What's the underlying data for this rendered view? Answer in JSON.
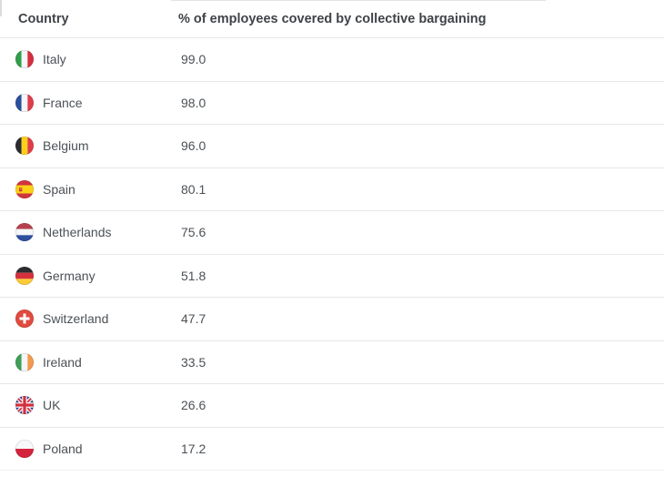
{
  "chart_data": {
    "type": "table",
    "columns": [
      "Country",
      "% of employees covered by collective bargaining"
    ],
    "rows": [
      {
        "country": "Italy",
        "value": "99.0",
        "flag_icon": "italy-flag-icon"
      },
      {
        "country": "France",
        "value": "98.0",
        "flag_icon": "france-flag-icon"
      },
      {
        "country": "Belgium",
        "value": "96.0",
        "flag_icon": "belgium-flag-icon"
      },
      {
        "country": "Spain",
        "value": "80.1",
        "flag_icon": "spain-flag-icon"
      },
      {
        "country": "Netherlands",
        "value": "75.6",
        "flag_icon": "netherlands-flag-icon"
      },
      {
        "country": "Germany",
        "value": "51.8",
        "flag_icon": "germany-flag-icon"
      },
      {
        "country": "Switzerland",
        "value": "47.7",
        "flag_icon": "switzerland-flag-icon"
      },
      {
        "country": "Ireland",
        "value": "33.5",
        "flag_icon": "ireland-flag-icon"
      },
      {
        "country": "UK",
        "value": "26.6",
        "flag_icon": "uk-flag-icon"
      },
      {
        "country": "Poland",
        "value": "17.2",
        "flag_icon": "poland-flag-icon"
      }
    ]
  },
  "colors": {
    "header_text": "#3f4347",
    "row_text": "#4c5156",
    "divider": "#e7e7e7"
  },
  "flag_icons": {
    "italy-flag-icon": {
      "kind": "vstripes",
      "colors": [
        "#319e4c",
        "#f4f6f7",
        "#d62e3e"
      ]
    },
    "france-flag-icon": {
      "kind": "vstripes",
      "colors": [
        "#2c4e9c",
        "#f4f6f7",
        "#df3d4b"
      ]
    },
    "belgium-flag-icon": {
      "kind": "vstripes",
      "colors": [
        "#2b2b30",
        "#fbd018",
        "#e13c47"
      ]
    },
    "spain-flag-icon": {
      "kind": "spain",
      "colors": [
        "#d03440",
        "#fbd116"
      ]
    },
    "netherlands-flag-icon": {
      "kind": "hstripes",
      "colors": [
        "#b5414f",
        "#f4f6f7",
        "#2e4d9e"
      ]
    },
    "germany-flag-icon": {
      "kind": "hstripes",
      "colors": [
        "#2b2b30",
        "#d5313d",
        "#fbcb38"
      ]
    },
    "switzerland-flag-icon": {
      "kind": "swiss",
      "colors": [
        "#e04a3f",
        "#ffffff"
      ]
    },
    "ireland-flag-icon": {
      "kind": "vstripes",
      "colors": [
        "#3f9e57",
        "#f4f6f7",
        "#f29a4d"
      ]
    },
    "uk-flag-icon": {
      "kind": "uk",
      "colors": [
        "#27418f",
        "#f4f6f7",
        "#d62e3e"
      ]
    },
    "poland-flag-icon": {
      "kind": "hstripes",
      "colors": [
        "#f7f8f9",
        "#d4233c"
      ]
    }
  }
}
